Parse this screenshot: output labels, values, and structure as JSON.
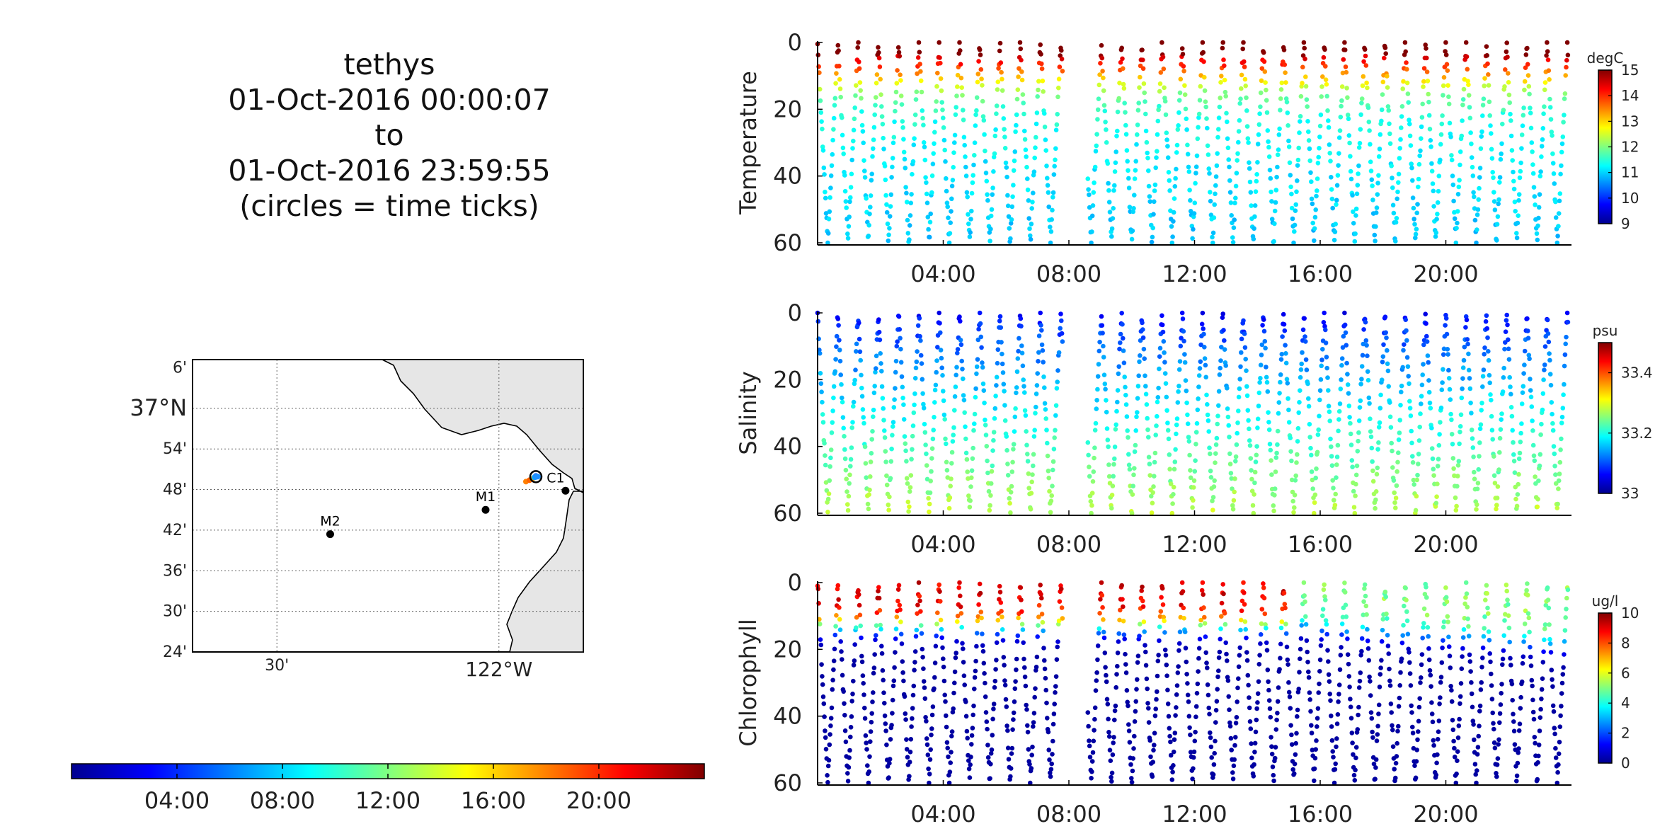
{
  "title": {
    "vehicle": "tethys",
    "start": "01-Oct-2016 00:00:07",
    "to": "to",
    "end": "01-Oct-2016 23:59:55",
    "note": "(circles = time ticks)"
  },
  "colormap": [
    "#00008f",
    "#0000ff",
    "#0080ff",
    "#00ffff",
    "#80ff80",
    "#ffff00",
    "#ff8000",
    "#ff0000",
    "#800000"
  ],
  "chart_data": [
    {
      "type": "scatter",
      "name": "temperature-panel",
      "ylabel": "Temperature",
      "colorbar_unit": "degC",
      "colorbar_ticks": [
        "9",
        "10",
        "11",
        "12",
        "13",
        "14",
        "15"
      ],
      "color_range": [
        9,
        15
      ],
      "y_ticks": [
        "0",
        "20",
        "40",
        "60"
      ],
      "ylim": [
        0,
        60
      ],
      "y_inverted": true,
      "x_ticks": [
        "04:00",
        "08:00",
        "12:00",
        "16:00",
        "20:00"
      ],
      "xlim_hours": [
        0,
        24
      ],
      "gap_hours": [
        7.8,
        8.6
      ],
      "profile": {
        "surface": 14.4,
        "deep": 10.9
      }
    },
    {
      "type": "scatter",
      "name": "salinity-panel",
      "ylabel": "Salinity",
      "colorbar_unit": "psu",
      "colorbar_ticks": [
        "33",
        "33.2",
        "33.4"
      ],
      "color_range": [
        33.0,
        33.5
      ],
      "y_ticks": [
        "0",
        "20",
        "40",
        "60"
      ],
      "ylim": [
        0,
        60
      ],
      "y_inverted": true,
      "x_ticks": [
        "04:00",
        "08:00",
        "12:00",
        "16:00",
        "20:00"
      ],
      "xlim_hours": [
        0,
        24
      ],
      "gap_hours": [
        7.8,
        8.6
      ],
      "profile": {
        "surface": 33.06,
        "deep": 33.28
      }
    },
    {
      "type": "scatter",
      "name": "chlorophyll-panel",
      "ylabel": "Chlorophyll",
      "colorbar_unit": "ug/l",
      "colorbar_ticks": [
        "0",
        "2",
        "4",
        "6",
        "8",
        "10"
      ],
      "color_range": [
        0,
        10
      ],
      "y_ticks": [
        "0",
        "20",
        "40",
        "60"
      ],
      "ylim": [
        0,
        60
      ],
      "y_inverted": true,
      "x_ticks": [
        "04:00",
        "08:00",
        "12:00",
        "16:00",
        "20:00"
      ],
      "xlim_hours": [
        0,
        24
      ],
      "gap_hours": [
        7.8,
        8.6
      ],
      "profile": {
        "surface": 9.0,
        "deep": 0.2
      }
    }
  ],
  "map": {
    "lat_labels": [
      "6'",
      "37°N",
      "54'",
      "48'",
      "42'",
      "36'",
      "30'",
      "24'"
    ],
    "lon_labels": [
      "30'",
      "122°W"
    ],
    "moorings": [
      {
        "label": "M2",
        "lon": -122.38,
        "lat": 36.69
      },
      {
        "label": "M1",
        "lon": -122.03,
        "lat": 36.75
      },
      {
        "label": "C1",
        "lon": -121.85,
        "lat": 36.797
      }
    ],
    "track_lon": -121.92,
    "track_lat": 36.83
  },
  "time_colorbar": {
    "ticks": [
      "04:00",
      "08:00",
      "12:00",
      "16:00",
      "20:00"
    ]
  }
}
